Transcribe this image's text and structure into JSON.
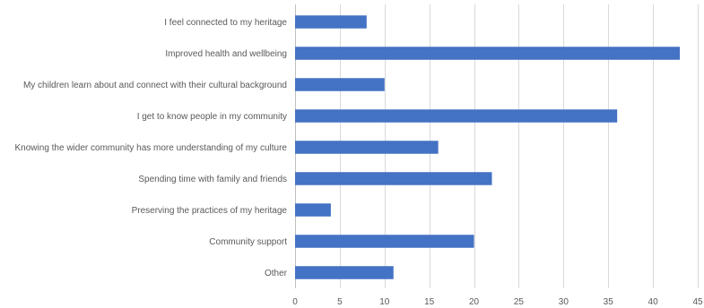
{
  "chart_data": {
    "type": "bar",
    "orientation": "horizontal",
    "title": "",
    "xlabel": "",
    "ylabel": "",
    "categories": [
      "I feel connected to my heritage",
      "Improved health and wellbeing",
      "My children learn about and connect with their cultural background",
      "I get to know people in my community",
      "Knowing the wider community has more understanding of my culture",
      "Spending time with family and friends",
      "Preserving the practices of my heritage",
      "Community support",
      "Other"
    ],
    "values": [
      8,
      43,
      10,
      36,
      16,
      22,
      4,
      20,
      11
    ],
    "xlim": [
      0,
      45
    ],
    "xticks": [
      0,
      5,
      10,
      15,
      20,
      25,
      30,
      35,
      40,
      45
    ],
    "grid": true,
    "legend": "none",
    "bar_color": "#4472C4"
  }
}
